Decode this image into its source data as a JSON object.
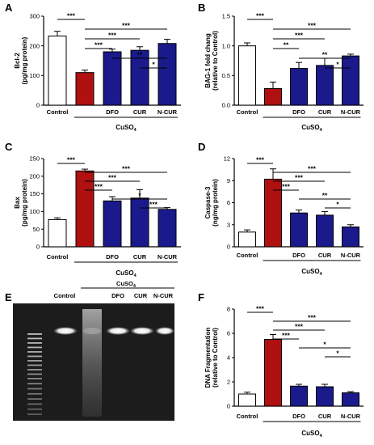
{
  "colors": {
    "control": "#ffffff",
    "cuso4": "#b01010",
    "treated": "#1a1a8c",
    "edge": "#000000"
  },
  "chart_data": [
    {
      "panel": "A",
      "type": "bar",
      "categories": [
        "Control",
        "",
        "DFO",
        "CUR",
        "N-CUR"
      ],
      "values": [
        233,
        110,
        180,
        185,
        208
      ],
      "errors": [
        16,
        8,
        9,
        12,
        14
      ],
      "colors": [
        "control",
        "cuso4",
        "treated",
        "treated",
        "treated"
      ],
      "ylabel": [
        "Bcl-2",
        "(pg/mg protein)"
      ],
      "ylim": [
        0,
        300
      ],
      "yticks": [
        "0",
        "100",
        "200",
        "300"
      ],
      "group_label": "CuSO",
      "group_sub": "4",
      "significance": [
        {
          "from": 0,
          "to": 1,
          "label": "***"
        },
        {
          "from": 1,
          "to": 4,
          "label": "***"
        },
        {
          "from": 1,
          "to": 3,
          "label": "***"
        },
        {
          "from": 1,
          "to": 2,
          "label": "***"
        },
        {
          "from": 2,
          "to": 4,
          "label": "**"
        },
        {
          "from": 3,
          "to": 4,
          "label": "*"
        }
      ]
    },
    {
      "panel": "B",
      "type": "bar",
      "categories": [
        "Control",
        "",
        "DFO",
        "CUR",
        "N-CUR"
      ],
      "values": [
        1.0,
        0.28,
        0.62,
        0.67,
        0.83
      ],
      "errors": [
        0.05,
        0.11,
        0.1,
        0.12,
        0.03
      ],
      "colors": [
        "control",
        "cuso4",
        "treated",
        "treated",
        "treated"
      ],
      "ylabel": [
        "BAG-1 fold chang",
        "(relative to Control)"
      ],
      "ylim": [
        0,
        1.5
      ],
      "yticks": [
        "0.0",
        "0.5",
        "1.0",
        "1.5"
      ],
      "group_label": "CuSO",
      "group_sub": "4",
      "significance": [
        {
          "from": 0,
          "to": 1,
          "label": "***"
        },
        {
          "from": 1,
          "to": 4,
          "label": "***"
        },
        {
          "from": 1,
          "to": 3,
          "label": "***"
        },
        {
          "from": 1,
          "to": 2,
          "label": "**"
        },
        {
          "from": 2,
          "to": 4,
          "label": "**"
        },
        {
          "from": 3,
          "to": 4,
          "label": "*"
        }
      ]
    },
    {
      "panel": "C",
      "type": "bar",
      "categories": [
        "Control",
        "",
        "DFO",
        "CUR",
        "N-CUR"
      ],
      "values": [
        77,
        215,
        130,
        138,
        106
      ],
      "errors": [
        5,
        5,
        12,
        24,
        5
      ],
      "colors": [
        "control",
        "cuso4",
        "treated",
        "treated",
        "treated"
      ],
      "ylabel": [
        "Bax",
        "(pg/mg protein)"
      ],
      "ylim": [
        0,
        250
      ],
      "yticks": [
        "0",
        "50",
        "100",
        "150",
        "200",
        "250"
      ],
      "group_label": "CuSO",
      "group_sub": "4",
      "significance": [
        {
          "from": 0,
          "to": 1,
          "label": "***"
        },
        {
          "from": 1,
          "to": 4,
          "label": "***"
        },
        {
          "from": 1,
          "to": 3,
          "label": "***"
        },
        {
          "from": 1,
          "to": 2,
          "label": "***"
        },
        {
          "from": 2,
          "to": 4,
          "label": "*"
        },
        {
          "from": 3,
          "to": 4,
          "label": "***"
        }
      ]
    },
    {
      "panel": "D",
      "type": "bar",
      "categories": [
        "Control",
        "",
        "DFO",
        "CUR",
        "N-CUR"
      ],
      "values": [
        2.0,
        9.2,
        4.6,
        4.3,
        2.7
      ],
      "errors": [
        0.3,
        1.4,
        0.4,
        0.5,
        0.3
      ],
      "colors": [
        "control",
        "cuso4",
        "treated",
        "treated",
        "treated"
      ],
      "ylabel": [
        "Caspase-3",
        "(ng/mg protein)"
      ],
      "ylim": [
        0,
        12
      ],
      "yticks": [
        "0",
        "3",
        "6",
        "9",
        "12"
      ],
      "group_label": "CuSO",
      "group_sub": "4",
      "significance": [
        {
          "from": 0,
          "to": 1,
          "label": "***"
        },
        {
          "from": 1,
          "to": 4,
          "label": "***"
        },
        {
          "from": 1,
          "to": 3,
          "label": "***"
        },
        {
          "from": 1,
          "to": 2,
          "label": "***"
        },
        {
          "from": 2,
          "to": 4,
          "label": "**"
        },
        {
          "from": 3,
          "to": 4,
          "label": "*"
        }
      ]
    },
    {
      "panel": "F",
      "type": "bar",
      "categories": [
        "Control",
        "",
        "DFO",
        "CUR",
        "N-CUR"
      ],
      "values": [
        1.0,
        5.5,
        1.65,
        1.6,
        1.1
      ],
      "errors": [
        0.15,
        0.4,
        0.15,
        0.2,
        0.1
      ],
      "colors": [
        "control",
        "cuso4",
        "treated",
        "treated",
        "treated"
      ],
      "ylabel": [
        "DNA Fragmentation",
        "(relative to Control)"
      ],
      "ylim": [
        0,
        8
      ],
      "yticks": [
        "0",
        "2",
        "4",
        "6",
        "8"
      ],
      "group_label": "CuSO",
      "group_sub": "4",
      "significance": [
        {
          "from": 0,
          "to": 1,
          "label": "***"
        },
        {
          "from": 1,
          "to": 4,
          "label": "***"
        },
        {
          "from": 1,
          "to": 3,
          "label": "***"
        },
        {
          "from": 1,
          "to": 2,
          "label": "***"
        },
        {
          "from": 2,
          "to": 4,
          "label": "*"
        },
        {
          "from": 3,
          "to": 4,
          "label": "*"
        }
      ]
    }
  ],
  "gel": {
    "panel": "E",
    "lanes": [
      "Control",
      "DFO",
      "CUR",
      "N-CUR"
    ],
    "group_label": "CuSO",
    "group_sub": "4"
  }
}
